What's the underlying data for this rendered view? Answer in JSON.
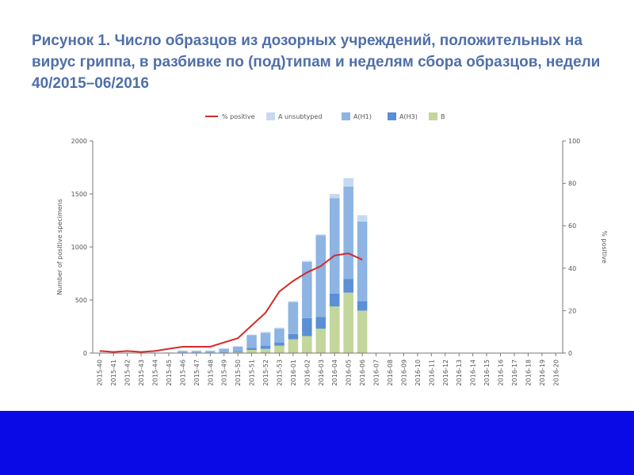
{
  "slide": {
    "title": "Рисунок 1. Число образцов из дозорных учреждений, положительных на вирус гриппа, в разбивке по (под)типам и неделям сбора образцов, недели 40/2015–06/2016"
  },
  "colors": {
    "title": "#4f6fa8",
    "bottom_band": "#0a0ae6",
    "line": "#d62a2a",
    "A_unsubtyped": "#c6d9f1",
    "A_H1": "#8db4e2",
    "A_H3": "#5b8fd6",
    "B": "#c3d69b"
  },
  "chart_data": {
    "type": "bar",
    "stacked": true,
    "categories": [
      "2015-40",
      "2015-41",
      "2015-42",
      "2015-43",
      "2015-44",
      "2015-45",
      "2015-46",
      "2015-47",
      "2015-48",
      "2015-49",
      "2015-50",
      "2015-51",
      "2015-52",
      "2015-53",
      "2016-01",
      "2016-02",
      "2016-03",
      "2016-04",
      "2016-05",
      "2016-06",
      "2016-07",
      "2016-08",
      "2016-09",
      "2016-10",
      "2016-11",
      "2016-12",
      "2016-13",
      "2016-14",
      "2016-15",
      "2016-16",
      "2016-17",
      "2016-18",
      "2016-19",
      "2016-20"
    ],
    "series": [
      {
        "name": "B",
        "color": "#c3d69b",
        "values": [
          0,
          0,
          0,
          0,
          0,
          0,
          0,
          0,
          0,
          5,
          10,
          30,
          40,
          70,
          130,
          160,
          230,
          440,
          570,
          400,
          0,
          0,
          0,
          0,
          0,
          0,
          0,
          0,
          0,
          0,
          0,
          0,
          0,
          0
        ]
      },
      {
        "name": "A(H3)",
        "color": "#5b8fd6",
        "values": [
          0,
          0,
          0,
          0,
          0,
          0,
          5,
          5,
          5,
          5,
          10,
          20,
          30,
          30,
          50,
          170,
          110,
          120,
          130,
          90,
          0,
          0,
          0,
          0,
          0,
          0,
          0,
          0,
          0,
          0,
          0,
          0,
          0,
          0
        ]
      },
      {
        "name": "A(H1)",
        "color": "#8db4e2",
        "values": [
          3,
          2,
          2,
          2,
          5,
          5,
          15,
          15,
          15,
          30,
          40,
          120,
          120,
          130,
          300,
          530,
          770,
          900,
          870,
          750,
          0,
          0,
          0,
          0,
          0,
          0,
          0,
          0,
          0,
          0,
          0,
          0,
          0,
          0
        ]
      },
      {
        "name": "A unsubtyped",
        "color": "#c6d9f1",
        "values": [
          0,
          0,
          0,
          0,
          0,
          0,
          5,
          5,
          5,
          5,
          5,
          5,
          10,
          10,
          10,
          10,
          10,
          40,
          80,
          60,
          0,
          0,
          0,
          0,
          0,
          0,
          0,
          0,
          0,
          0,
          0,
          0,
          0,
          0
        ]
      }
    ],
    "line_series": {
      "name": "% positive",
      "color": "#d62a2a",
      "axis": "right",
      "values": [
        1,
        0.5,
        1,
        0.5,
        1,
        2,
        3,
        3,
        3,
        5,
        7,
        13,
        19,
        29,
        34,
        38,
        41,
        46,
        47,
        44,
        null,
        null,
        null,
        null,
        null,
        null,
        null,
        null,
        null,
        null,
        null,
        null,
        null,
        null
      ]
    },
    "legend": [
      "% positive",
      "A unsubtyped",
      "A(H1)",
      "A(H3)",
      "B"
    ],
    "legend_position": "top",
    "ylabel": "Number of positive specimens",
    "y2label": "% positive",
    "ylim": [
      0,
      2000
    ],
    "y_ticks": [
      0,
      500,
      1000,
      1500,
      2000
    ],
    "y2lim": [
      0,
      100
    ],
    "y2_ticks": [
      0,
      20,
      40,
      60,
      80,
      100
    ],
    "grid": false
  }
}
